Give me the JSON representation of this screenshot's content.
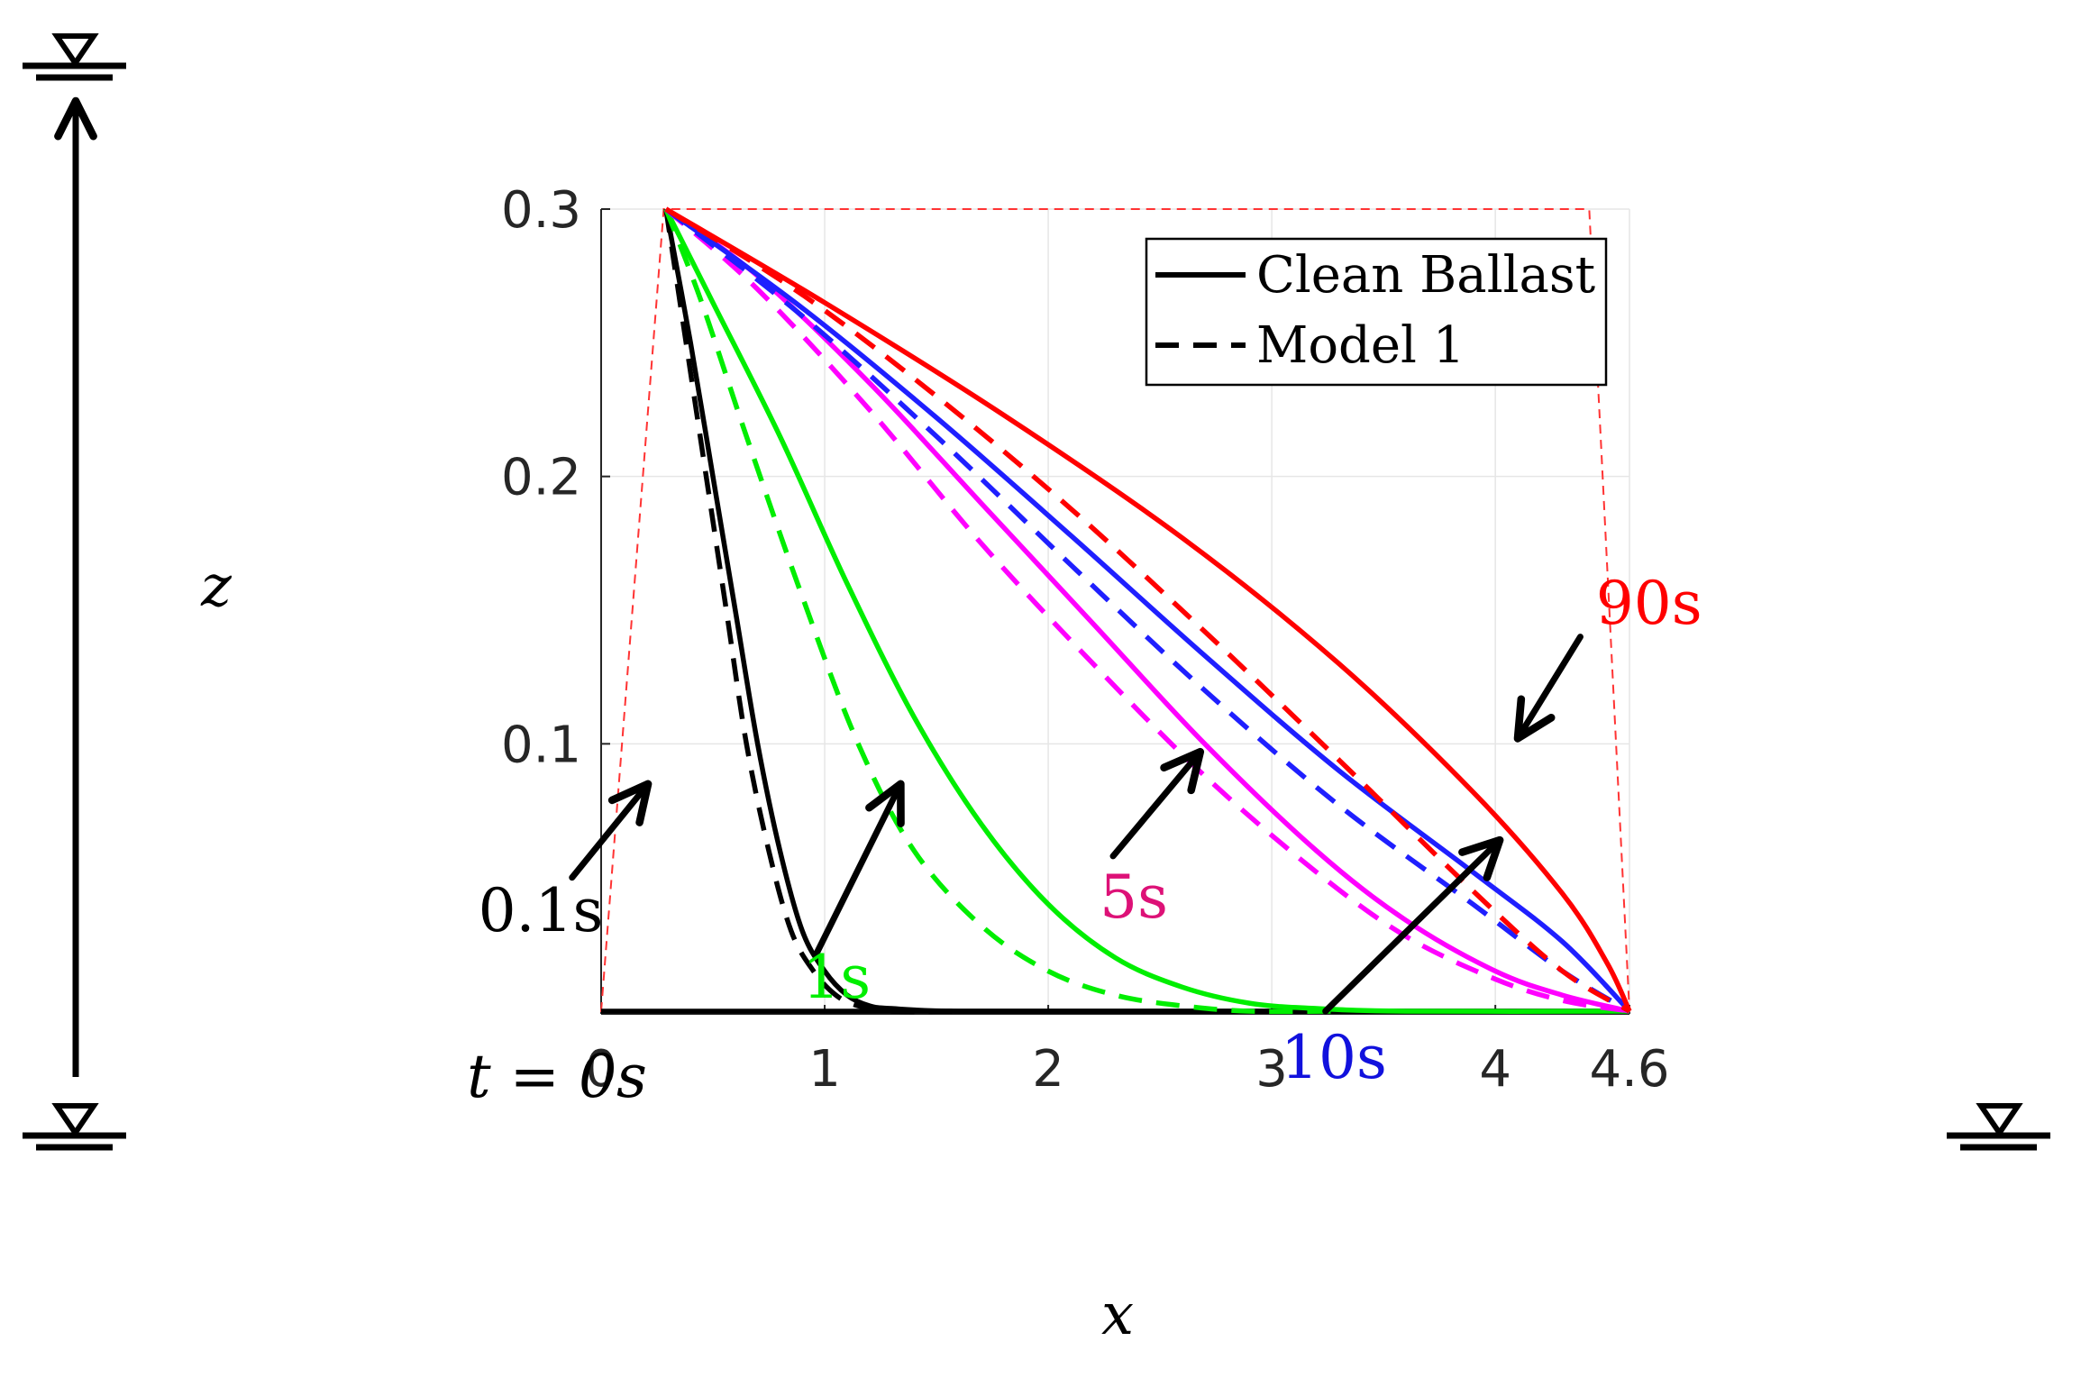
{
  "chart_data": {
    "type": "line",
    "title": "",
    "xlabel": "x",
    "ylabel": "z",
    "xlim": [
      0,
      4.6
    ],
    "ylim": [
      0,
      0.3
    ],
    "x_ticks": [
      "0",
      "1",
      "2",
      "3",
      "4",
      "4.6"
    ],
    "x_tick_values": [
      0,
      1,
      2,
      3,
      4,
      4.6
    ],
    "y_ticks": [
      "0.1",
      "0.2",
      "0.3"
    ],
    "y_tick_values": [
      0.1,
      0.2,
      0.3
    ],
    "grid": true,
    "legend": {
      "placement": "top-right",
      "entries": [
        {
          "label": "Clean Ballast",
          "style": "solid"
        },
        {
          "label": "Model 1",
          "style": "dashed"
        }
      ]
    },
    "boundary_trapezoid": {
      "color": "#ff3333",
      "points": [
        [
          0,
          0
        ],
        [
          0.28,
          0.3
        ],
        [
          4.42,
          0.3
        ],
        [
          4.6,
          0
        ]
      ]
    },
    "series": [
      {
        "time": "t=0s",
        "color": "#000000",
        "style": "solid",
        "x": [
          0,
          4.6
        ],
        "y": [
          0,
          0
        ]
      },
      {
        "time": "0.1s",
        "color": "#000000",
        "style": "solid",
        "x": [
          0.29,
          0.4,
          0.5,
          0.6,
          0.7,
          0.8,
          0.9,
          1.0,
          1.1,
          1.2,
          1.3,
          1.6,
          2.5,
          4.6
        ],
        "y": [
          0.3,
          0.25,
          0.2,
          0.15,
          0.1,
          0.06,
          0.03,
          0.015,
          0.006,
          0.002,
          0.001,
          0,
          0,
          0
        ]
      },
      {
        "time": "0.1s",
        "color": "#000000",
        "style": "dashed",
        "x": [
          0.29,
          0.38,
          0.47,
          0.56,
          0.65,
          0.75,
          0.85,
          0.95,
          1.05,
          1.15,
          1.3,
          1.6
        ],
        "y": [
          0.3,
          0.25,
          0.2,
          0.15,
          0.1,
          0.06,
          0.03,
          0.015,
          0.006,
          0.002,
          0.0,
          0
        ]
      },
      {
        "time": "1s",
        "color": "#00ee00",
        "style": "solid",
        "x": [
          0.29,
          0.5,
          0.8,
          1.1,
          1.4,
          1.7,
          2.0,
          2.3,
          2.6,
          2.9,
          3.2,
          3.6,
          4.6
        ],
        "y": [
          0.3,
          0.265,
          0.215,
          0.16,
          0.11,
          0.07,
          0.04,
          0.02,
          0.009,
          0.003,
          0.001,
          0,
          0
        ]
      },
      {
        "time": "1s",
        "color": "#00ee00",
        "style": "dashed",
        "x": [
          0.29,
          0.45,
          0.65,
          0.9,
          1.15,
          1.4,
          1.7,
          2.0,
          2.3,
          2.6,
          2.9,
          3.3
        ],
        "y": [
          0.3,
          0.265,
          0.215,
          0.155,
          0.1,
          0.06,
          0.032,
          0.015,
          0.006,
          0.002,
          0.0,
          0
        ]
      },
      {
        "time": "5s",
        "color": "#ff00ff",
        "style": "solid",
        "x": [
          0.29,
          0.7,
          1.2,
          1.7,
          2.2,
          2.7,
          3.2,
          3.6,
          4.0,
          4.3,
          4.6
        ],
        "y": [
          0.3,
          0.275,
          0.235,
          0.19,
          0.145,
          0.1,
          0.06,
          0.034,
          0.015,
          0.006,
          0
        ]
      },
      {
        "time": "5s",
        "color": "#ff00ff",
        "style": "dashed",
        "x": [
          0.29,
          0.7,
          1.2,
          1.7,
          2.2,
          2.7,
          3.2,
          3.6,
          4.0,
          4.3,
          4.6
        ],
        "y": [
          0.3,
          0.27,
          0.225,
          0.175,
          0.13,
          0.088,
          0.052,
          0.028,
          0.012,
          0.004,
          0
        ]
      },
      {
        "time": "10s",
        "color": "#1f1fff",
        "style": "solid",
        "x": [
          0.29,
          0.9,
          1.5,
          2.1,
          2.7,
          3.3,
          3.9,
          4.3,
          4.6
        ],
        "y": [
          0.3,
          0.263,
          0.222,
          0.178,
          0.133,
          0.09,
          0.052,
          0.026,
          0
        ]
      },
      {
        "time": "10s",
        "color": "#1f1fff",
        "style": "dashed",
        "x": [
          0.29,
          0.9,
          1.5,
          2.1,
          2.7,
          3.3,
          3.9,
          4.3,
          4.6
        ],
        "y": [
          0.3,
          0.26,
          0.215,
          0.167,
          0.12,
          0.077,
          0.04,
          0.015,
          0
        ]
      },
      {
        "time": "90s",
        "color": "#ff0000",
        "style": "solid",
        "x": [
          0.29,
          1.0,
          1.8,
          2.6,
          3.3,
          3.9,
          4.3,
          4.5,
          4.6
        ],
        "y": [
          0.3,
          0.265,
          0.223,
          0.177,
          0.13,
          0.082,
          0.044,
          0.018,
          0
        ]
      },
      {
        "time": "90s",
        "color": "#ff0000",
        "style": "dashed",
        "x": [
          0.29,
          0.9,
          1.5,
          2.1,
          2.7,
          3.3,
          3.9,
          4.3,
          4.6
        ],
        "y": [
          0.3,
          0.268,
          0.23,
          0.188,
          0.142,
          0.094,
          0.045,
          0.015,
          0
        ]
      }
    ],
    "annotations": [
      {
        "text": "t = 0s",
        "color": "#000000",
        "x": -0.6,
        "y": -0.032
      },
      {
        "text": "0.1s",
        "color": "#000000",
        "x": -0.55,
        "y": 0.03,
        "arrow_from": [
          -0.13,
          0.05
        ],
        "arrow_to": [
          0.21,
          0.085
        ]
      },
      {
        "text": "1s",
        "color": "#00ee00",
        "x": 0.9,
        "y": 0.005,
        "arrow_from": [
          0.96,
          0.021
        ],
        "arrow_to": [
          1.34,
          0.085
        ]
      },
      {
        "text": "5s",
        "color": "#dd1177",
        "x": 2.23,
        "y": 0.035,
        "arrow_from": [
          2.29,
          0.058
        ],
        "arrow_to": [
          2.68,
          0.097
        ]
      },
      {
        "text": "10s",
        "color": "#1111dd",
        "x": 3.04,
        "y": -0.025,
        "arrow_from": [
          3.24,
          0.0
        ],
        "arrow_to": [
          4.02,
          0.064
        ]
      },
      {
        "text": "90s",
        "color": "#ff0000",
        "x": 4.45,
        "y": 0.145,
        "arrow_from": [
          4.38,
          0.14
        ],
        "arrow_to": [
          4.1,
          0.102
        ]
      }
    ],
    "decorations": {
      "water_level_symbols": 3
    }
  }
}
